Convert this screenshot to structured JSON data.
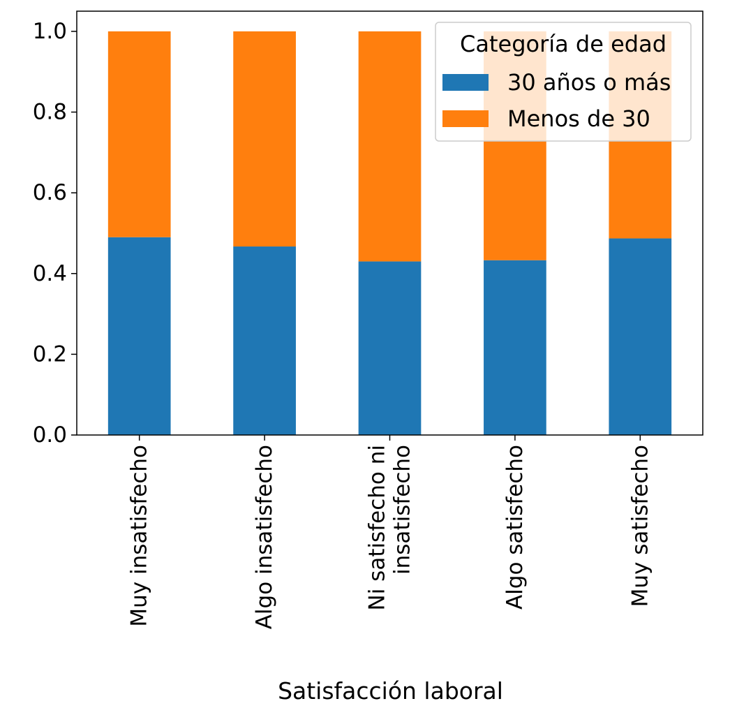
{
  "chart_data": {
    "type": "bar",
    "stacked": true,
    "categories": [
      [
        "Muy insatisfecho"
      ],
      [
        "Algo insatisfecho"
      ],
      [
        "Ni satisfecho ni",
        "insatisfecho"
      ],
      [
        "Algo satisfecho"
      ],
      [
        "Muy satisfecho"
      ]
    ],
    "series": [
      {
        "name": "30 años o más",
        "color": "#1f77b4",
        "values": [
          0.49,
          0.467,
          0.43,
          0.433,
          0.487
        ]
      },
      {
        "name": "Menos de 30",
        "color": "#ff7f0e",
        "values": [
          0.51,
          0.533,
          0.57,
          0.567,
          0.513
        ]
      }
    ],
    "xlabel": "Satisfacción laboral",
    "ylabel": "",
    "ylim": [
      0,
      1.05
    ],
    "yticks": [
      "0.0",
      "0.2",
      "0.4",
      "0.6",
      "0.8",
      "1.0"
    ],
    "legend": {
      "title": "Categoría de edad",
      "placement": "top-right"
    },
    "grid": false
  }
}
